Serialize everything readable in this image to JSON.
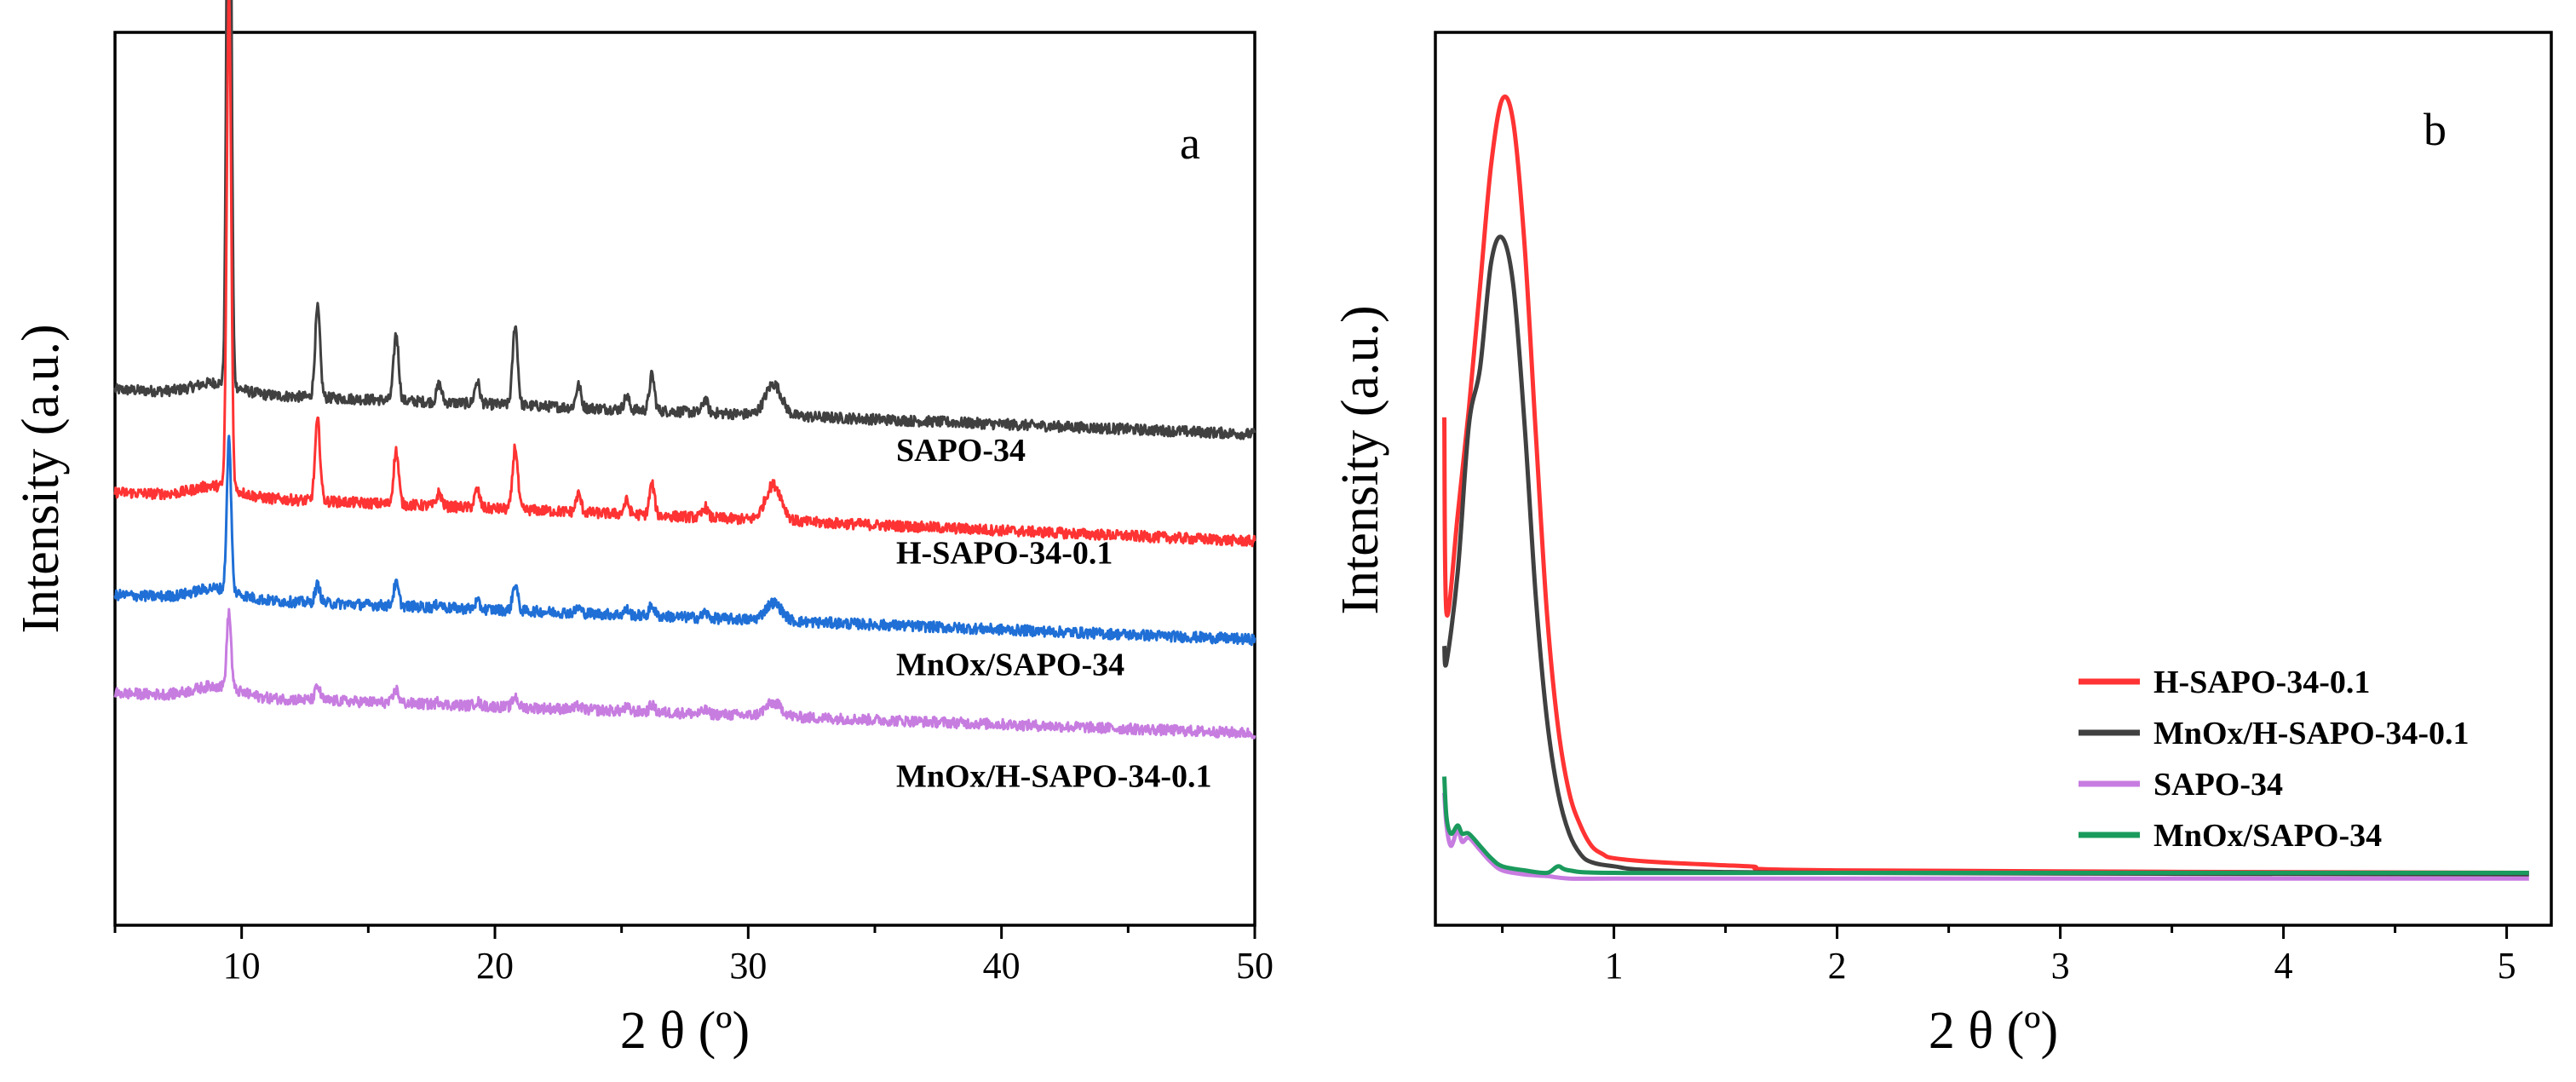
{
  "chart_data": [
    {
      "panel": "a",
      "type": "line",
      "title": "",
      "xlabel": "2 θ (º)",
      "ylabel": "Intensity (a.u.)",
      "xlim": [
        5,
        50
      ],
      "xticks": [
        10,
        20,
        30,
        40,
        50
      ],
      "yticks": [],
      "grid": false,
      "peaks_2theta": [
        9.5,
        13.0,
        16.1,
        17.8,
        19.3,
        20.8,
        23.3,
        25.2,
        26.2,
        28.3,
        31.0
      ],
      "series": [
        {
          "name": "SAPO-34",
          "color": "#404040",
          "baseline_start": 0.6,
          "baseline_end": 0.55,
          "peak_heights": [
            0.88,
            0.1,
            0.075,
            0.02,
            0.025,
            0.09,
            0.025,
            0.015,
            0.04,
            0.015,
            0.035
          ]
        },
        {
          "name": "H-SAPO-34-0.1",
          "color": "#ff3333",
          "baseline_start": 0.485,
          "baseline_end": 0.43,
          "peak_heights": [
            0.56,
            0.09,
            0.06,
            0.015,
            0.02,
            0.07,
            0.02,
            0.015,
            0.035,
            0.012,
            0.04
          ]
        },
        {
          "name": "MnOx/SAPO-34",
          "color": "#1f6fd6",
          "baseline_start": 0.37,
          "baseline_end": 0.32,
          "peak_heights": [
            0.17,
            0.02,
            0.025,
            0.005,
            0.008,
            0.03,
            0.006,
            0.006,
            0.012,
            0.006,
            0.02
          ]
        },
        {
          "name": "MnOx/H-SAPO-34-0.1",
          "color": "#c77ce0",
          "baseline_start": 0.26,
          "baseline_end": 0.215,
          "peak_heights": [
            0.085,
            0.015,
            0.015,
            0.004,
            0.005,
            0.012,
            0.004,
            0.004,
            0.008,
            0.004,
            0.015
          ]
        }
      ]
    },
    {
      "panel": "b",
      "type": "line",
      "title": "",
      "xlabel": "2 θ (º)",
      "ylabel": "Intensity (a.u.)",
      "xlim": [
        0.2,
        5.2
      ],
      "xticks": [
        1,
        2,
        3,
        4,
        5
      ],
      "yticks": [],
      "grid": false,
      "legend": "right",
      "series": [
        {
          "name": "H-SAPO-34-0.1",
          "color": "#ff3333",
          "x": [
            0.24,
            0.25,
            0.3,
            0.35,
            0.4,
            0.45,
            0.5,
            0.55,
            0.6,
            0.65,
            0.7,
            0.75,
            0.8,
            0.85,
            0.9,
            0.95,
            1.0,
            1.2,
            1.6,
            2.0,
            5.1
          ],
          "y": [
            0.57,
            0.33,
            0.45,
            0.58,
            0.73,
            0.88,
            0.96,
            0.93,
            0.78,
            0.55,
            0.33,
            0.19,
            0.11,
            0.07,
            0.045,
            0.035,
            0.03,
            0.025,
            0.02,
            0.015,
            0.012
          ]
        },
        {
          "name": "MnOx/H-SAPO-34-0.1",
          "color": "#404040",
          "x": [
            0.24,
            0.25,
            0.3,
            0.35,
            0.4,
            0.45,
            0.5,
            0.55,
            0.6,
            0.65,
            0.7,
            0.75,
            0.8,
            0.85,
            0.9,
            1.0,
            1.2,
            2.0,
            5.1
          ],
          "y": [
            0.29,
            0.27,
            0.38,
            0.56,
            0.63,
            0.76,
            0.79,
            0.73,
            0.56,
            0.35,
            0.2,
            0.11,
            0.06,
            0.035,
            0.025,
            0.02,
            0.015,
            0.012,
            0.01
          ]
        },
        {
          "name": "SAPO-34",
          "color": "#c77ce0",
          "x": [
            0.24,
            0.25,
            0.27,
            0.3,
            0.32,
            0.35,
            0.4,
            0.45,
            0.5,
            0.6,
            0.7,
            0.8,
            1.0,
            2.0,
            5.1
          ],
          "y": [
            0.11,
            0.07,
            0.045,
            0.065,
            0.05,
            0.055,
            0.04,
            0.025,
            0.015,
            0.01,
            0.008,
            0.005,
            0.005,
            0.005,
            0.005
          ]
        },
        {
          "name": "MnOx/SAPO-34",
          "color": "#1a9a5c",
          "x": [
            0.24,
            0.25,
            0.27,
            0.3,
            0.32,
            0.35,
            0.4,
            0.45,
            0.5,
            0.6,
            0.7,
            0.75,
            0.8,
            1.0,
            2.0,
            5.1
          ],
          "y": [
            0.13,
            0.08,
            0.06,
            0.07,
            0.06,
            0.06,
            0.045,
            0.03,
            0.02,
            0.015,
            0.012,
            0.02,
            0.015,
            0.012,
            0.012,
            0.012
          ]
        }
      ]
    }
  ],
  "panels": {
    "a": {
      "letter": "a",
      "xlabel": "2 θ (º)",
      "ylabel": "Intensity (a.u.)"
    },
    "b": {
      "letter": "b",
      "xlabel": "2 θ (º)",
      "ylabel": "Intensity (a.u.)"
    }
  }
}
